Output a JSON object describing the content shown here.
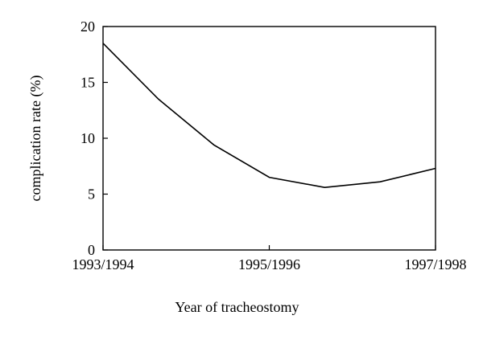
{
  "chart_data": {
    "type": "line",
    "xlabel": "Year of tracheostomy",
    "ylabel": "complication rate (%)",
    "ylim": [
      0,
      20
    ],
    "yticks": [
      0,
      5,
      10,
      15,
      20
    ],
    "x_tick_labels": [
      "1993/1994",
      "1995/1996",
      "1997/1998"
    ],
    "x": [
      0,
      1,
      2,
      3,
      4,
      5,
      6
    ],
    "series": [
      {
        "values": [
          18.5,
          13.5,
          9.4,
          6.5,
          5.6,
          6.1,
          7.3
        ]
      }
    ],
    "grid": false,
    "line_color": "#000000"
  }
}
